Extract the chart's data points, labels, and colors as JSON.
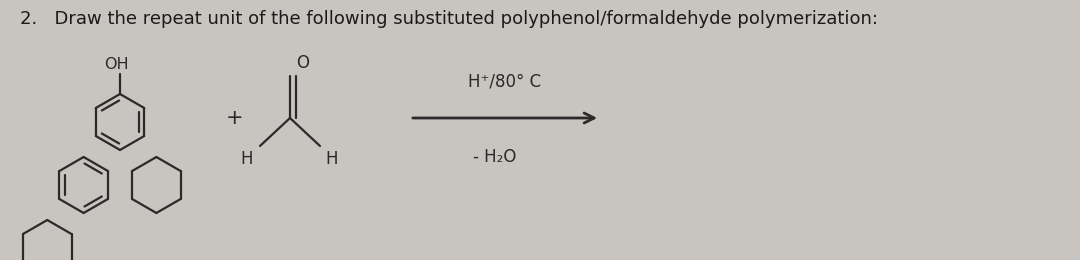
{
  "title_text": "2.   Draw the repeat unit of the following substituted polyphenol/formaldehyde polymerization:",
  "bg_color": "#c8c5c0",
  "text_color": "#1a1a1a",
  "condition_top": "H⁺/80° C",
  "condition_bottom": "- H₂O"
}
